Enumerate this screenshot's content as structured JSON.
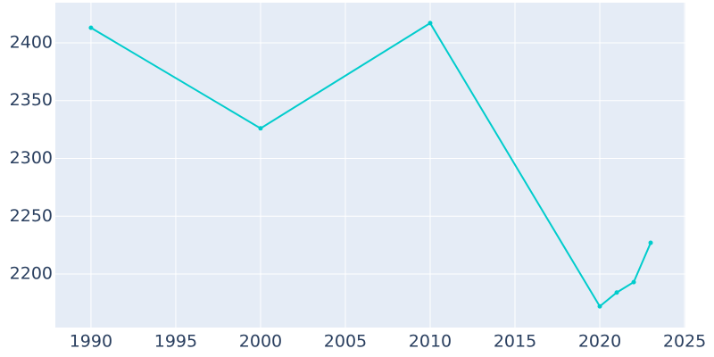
{
  "chart_data": {
    "type": "line",
    "x": [
      1990,
      2000,
      2010,
      2020,
      2021,
      2022,
      2023
    ],
    "series": [
      {
        "color": "#00cccc",
        "values": [
          2413,
          2326,
          2417,
          2172,
          2184,
          2193,
          2227
        ]
      }
    ],
    "xlim": [
      1987.9,
      2025.05
    ],
    "xticks": [
      1990,
      1995,
      2000,
      2005,
      2010,
      2015,
      2020,
      2025
    ],
    "ylim": [
      2153.7,
      2434.7
    ],
    "yticks": [
      2200,
      2250,
      2300,
      2350,
      2400
    ],
    "grid": true,
    "plot_background": "#e5ecf6"
  }
}
